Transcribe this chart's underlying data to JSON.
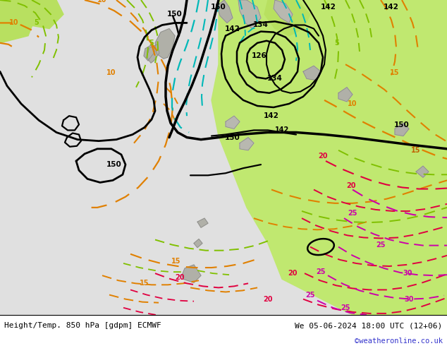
{
  "title_left": "Height/Temp. 850 hPa [gdpm] ECMWF",
  "title_right": "We 05-06-2024 18:00 UTC (12+06)",
  "copyright": "©weatheronline.co.uk",
  "figsize": [
    6.34,
    4.9
  ],
  "dpi": 100,
  "bg_white": "#e8e8e8",
  "bg_light_green": "#c8e87a",
  "bg_gray": "#c0c0c0"
}
